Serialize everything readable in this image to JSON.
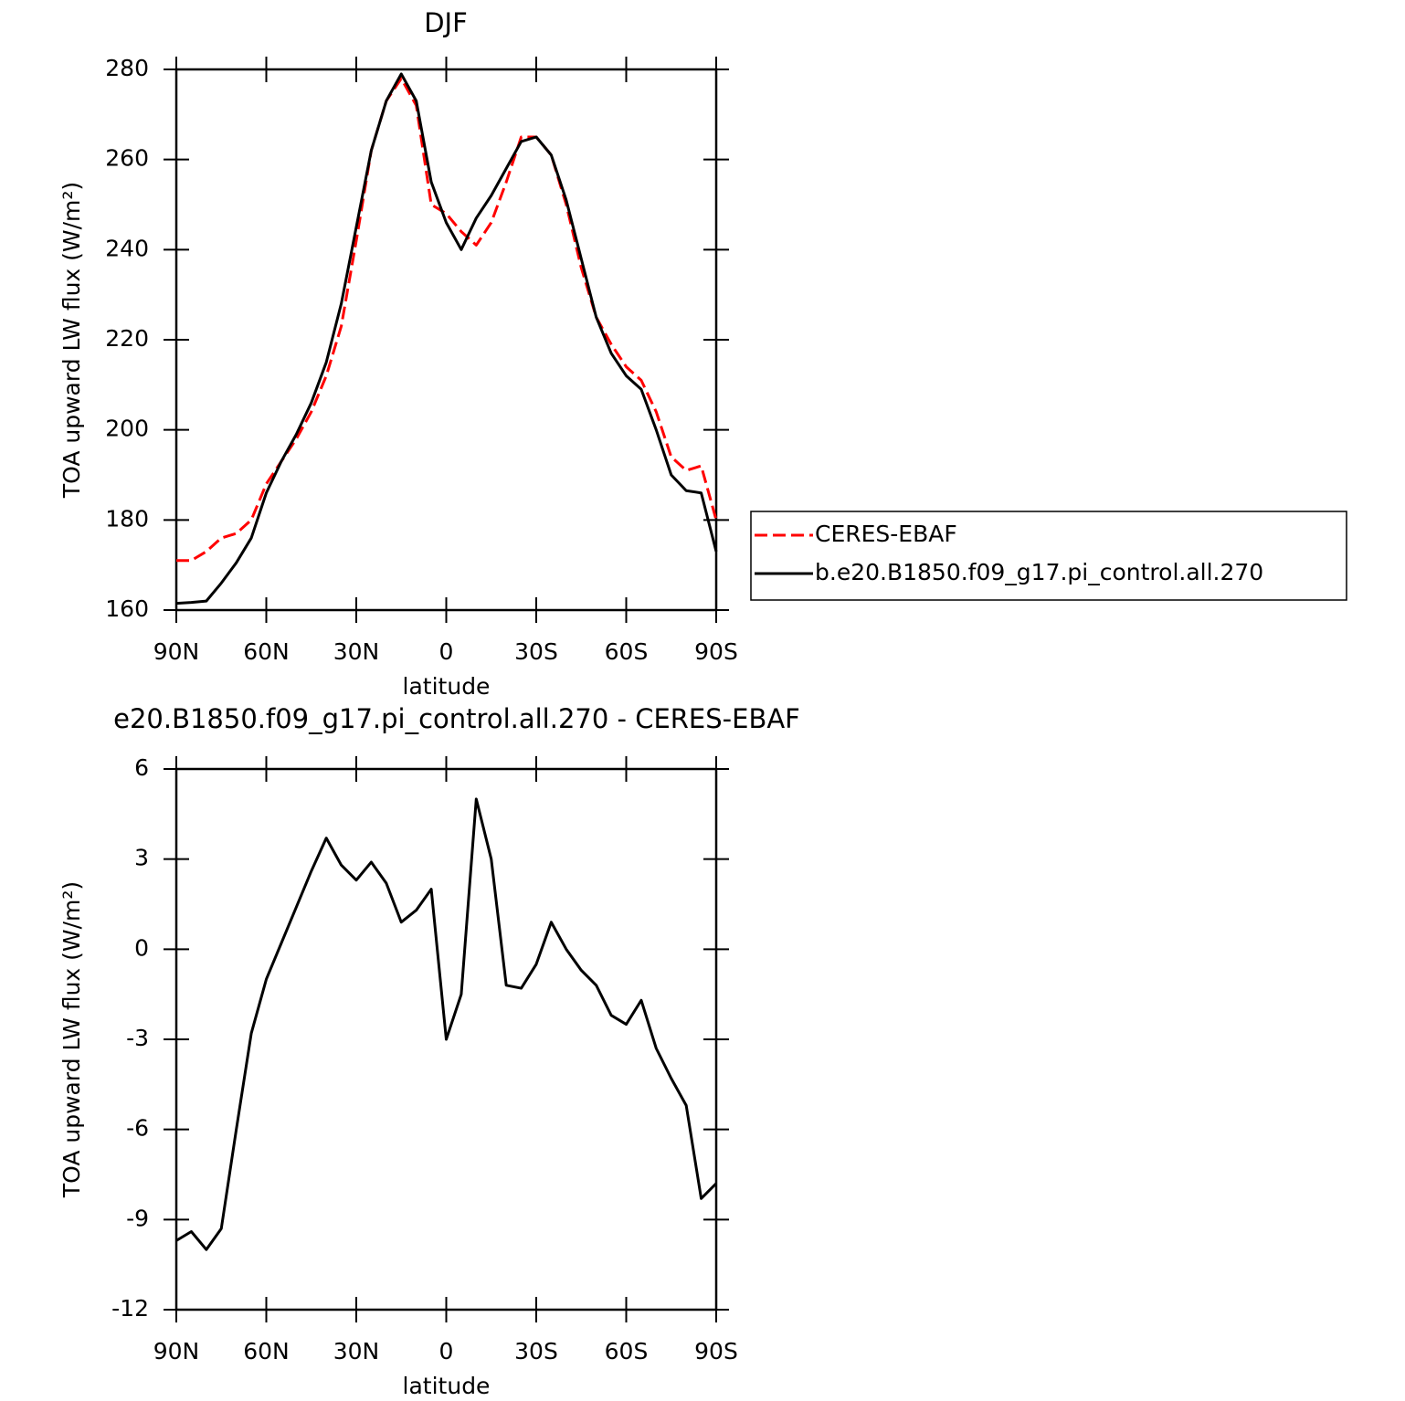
{
  "chart_data": [
    {
      "type": "line",
      "title": "DJF",
      "x_label": "latitude",
      "y_label": "TOA upward LW flux (W/m²)",
      "x": [
        90,
        85,
        80,
        75,
        70,
        65,
        60,
        55,
        50,
        45,
        40,
        35,
        30,
        25,
        20,
        15,
        10,
        5,
        0,
        -5,
        -10,
        -15,
        -20,
        -25,
        -30,
        -35,
        -40,
        -45,
        -50,
        -55,
        -60,
        -65,
        -70,
        -75,
        -80,
        -85,
        -90
      ],
      "xlim": [
        90,
        -90
      ],
      "xticks": [
        {
          "value": 90,
          "label": "90N"
        },
        {
          "value": 60,
          "label": "60N"
        },
        {
          "value": 30,
          "label": "30N"
        },
        0,
        {
          "value": -30,
          "label": "30S"
        },
        {
          "value": -60,
          "label": "60S"
        },
        {
          "value": -90,
          "label": "90S"
        }
      ],
      "ylim": [
        160,
        280
      ],
      "yticks": [
        160,
        180,
        200,
        220,
        240,
        260,
        280
      ],
      "legend": "outside-right",
      "series": [
        {
          "name": "CERES-EBAF",
          "color": "#ff0000",
          "dash": true,
          "values": [
            171,
            171,
            173,
            176,
            177,
            180,
            188,
            193,
            198,
            204,
            212,
            223,
            242,
            262,
            273,
            278,
            272,
            250,
            248,
            244,
            241,
            246,
            255,
            265,
            265,
            261,
            250,
            236,
            225,
            219,
            214,
            211,
            204,
            194,
            191,
            192,
            180
          ]
        },
        {
          "name": "b.e20.B1850.f09_g17.pi_control.all.270",
          "color": "#000000",
          "dash": false,
          "values": [
            161.5,
            161.7,
            162,
            166,
            170.5,
            176,
            186,
            193,
            199,
            206,
            215,
            228,
            245,
            262,
            273,
            279,
            273,
            255,
            246,
            240,
            247,
            252,
            258,
            264,
            265,
            261,
            251,
            238,
            225,
            217,
            212,
            209,
            200,
            190,
            186.5,
            186,
            173
          ]
        }
      ]
    },
    {
      "type": "line",
      "title": "e20.B1850.f09_g17.pi_control.all.270 - CERES-EBAF",
      "x_label": "latitude",
      "y_label": "TOA upward LW flux (W/m²)",
      "x": [
        90,
        85,
        80,
        75,
        70,
        65,
        60,
        55,
        50,
        45,
        40,
        35,
        30,
        25,
        20,
        15,
        10,
        5,
        0,
        -5,
        -10,
        -15,
        -20,
        -25,
        -30,
        -35,
        -40,
        -45,
        -50,
        -55,
        -60,
        -65,
        -70,
        -75,
        -80,
        -85,
        -90
      ],
      "xlim": [
        90,
        -90
      ],
      "xticks": [
        {
          "value": 90,
          "label": "90N"
        },
        {
          "value": 60,
          "label": "60N"
        },
        {
          "value": 30,
          "label": "30N"
        },
        0,
        {
          "value": -30,
          "label": "30S"
        },
        {
          "value": -60,
          "label": "60S"
        },
        {
          "value": -90,
          "label": "90S"
        }
      ],
      "ylim": [
        -12,
        6
      ],
      "yticks": [
        -12,
        -9,
        -6,
        -3,
        0,
        3,
        6
      ],
      "series": [
        {
          "color": "#000000",
          "values": [
            -9.7,
            -9.4,
            -10.0,
            -9.3,
            -6.0,
            -2.8,
            -1.0,
            0.2,
            1.4,
            2.6,
            3.7,
            2.8,
            2.3,
            2.9,
            2.2,
            0.9,
            1.3,
            2.0,
            -3.0,
            -1.5,
            5.0,
            3.0,
            -1.2,
            -1.3,
            -0.5,
            0.9,
            0.0,
            -0.7,
            -1.2,
            -2.2,
            -2.5,
            -1.7,
            -3.3,
            -4.3,
            -5.2,
            -8.3,
            -7.8
          ]
        }
      ]
    }
  ]
}
